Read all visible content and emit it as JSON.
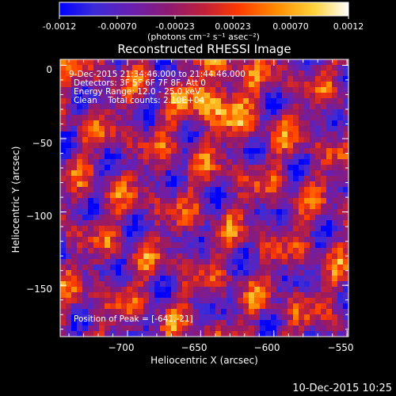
{
  "colorbar": {
    "ticks": [
      "-0.0012",
      "-0.00070",
      "-0.00023",
      "0.00023",
      "0.00070",
      "0.0012"
    ],
    "units": "(photons cm⁻² s⁻¹ asec⁻²)",
    "colors": [
      "#0000ff",
      "#3b2bd8",
      "#6a1fb0",
      "#8f1a70",
      "#c0203a",
      "#ff3a00",
      "#ff8c00",
      "#ffd23a",
      "#ffffff"
    ]
  },
  "info": {
    "time": "9-Dec-2015 21:34:46.000 to 21:44:46.000",
    "detectors": "Detectors: 3F 5F 6F 7F 8F, Att 0",
    "energy": "Energy Range: 12.0 - 25.0 keV",
    "clean": "Clean    Total counts: 2.10E+04",
    "peak": "Position of Peak = [-641,-21]"
  },
  "footer": {
    "timestamp": "10-Dec-2015 10:25"
  },
  "chart_data": {
    "type": "heatmap",
    "title": "Reconstructed RHESSI Image",
    "xlabel": "Heliocentric X (arcsec)",
    "ylabel": "Heliocentric Y (arcsec)",
    "xlim": [
      -746,
      -549
    ],
    "ylim": [
      -185,
      4
    ],
    "xticks": [
      -700,
      -650,
      -600,
      -550
    ],
    "yticks": [
      0,
      -50,
      -100,
      -150
    ],
    "color_range": [
      -0.0012,
      0.0012
    ],
    "peak": [
      -641,
      -21
    ],
    "grid": false
  }
}
